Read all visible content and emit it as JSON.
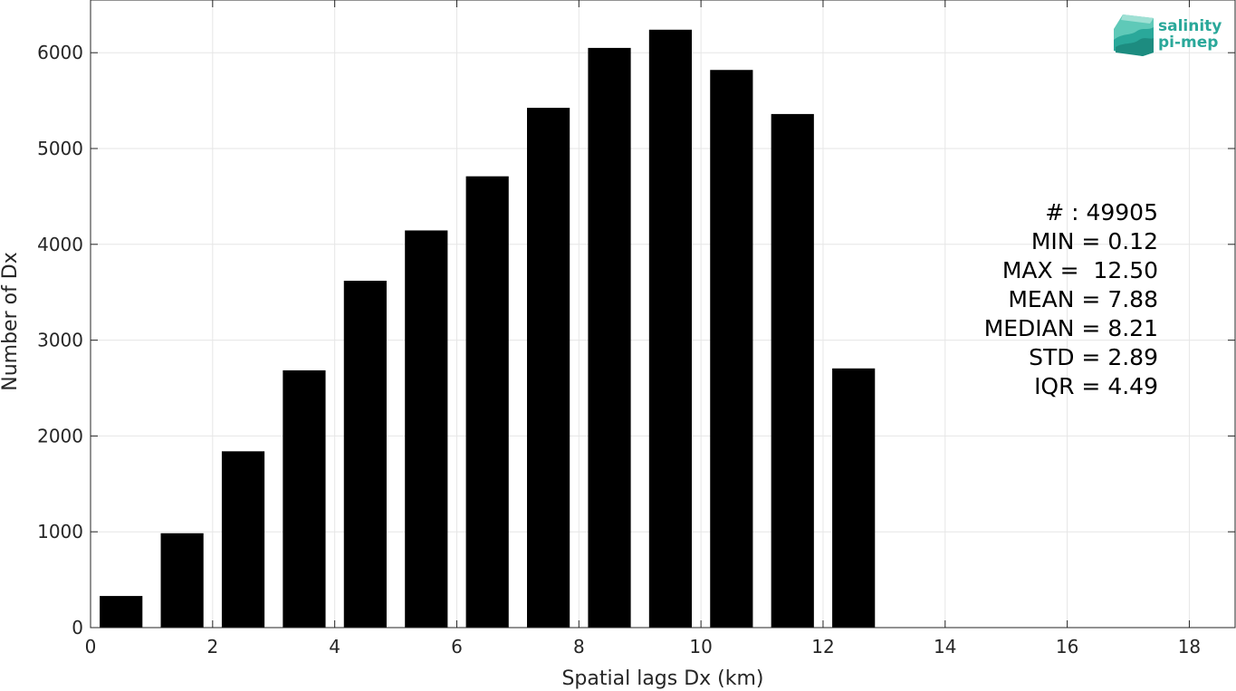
{
  "chart_data": {
    "type": "bar",
    "x": [
      0.5,
      1.5,
      2.5,
      3.5,
      4.5,
      5.5,
      6.5,
      7.5,
      8.5,
      9.5,
      10.5,
      11.5,
      12.5
    ],
    "values": [
      330,
      985,
      1840,
      2685,
      3620,
      4145,
      4710,
      5425,
      6050,
      6240,
      5820,
      5360,
      2705
    ],
    "bar_width": 0.7,
    "bar_color": "#000000",
    "xlabel": "Spatial lags Dx (km)",
    "ylabel": "Number of Dx",
    "xlim": [
      0,
      18.75
    ],
    "ylim": [
      0,
      6550
    ],
    "xticks": [
      0,
      2,
      4,
      6,
      8,
      10,
      12,
      14,
      16,
      18
    ],
    "yticks": [
      0,
      1000,
      2000,
      3000,
      4000,
      5000,
      6000
    ],
    "grid": true
  },
  "stats": [
    "# : 49905",
    "MIN = 0.12",
    "MAX =  12.50",
    "MEAN = 7.88",
    "MEDIAN = 8.21",
    "STD = 2.89",
    "IQR = 4.49"
  ],
  "logo": {
    "line1": "salinity",
    "line2": "pi-mep",
    "color": "#2aa89a"
  }
}
